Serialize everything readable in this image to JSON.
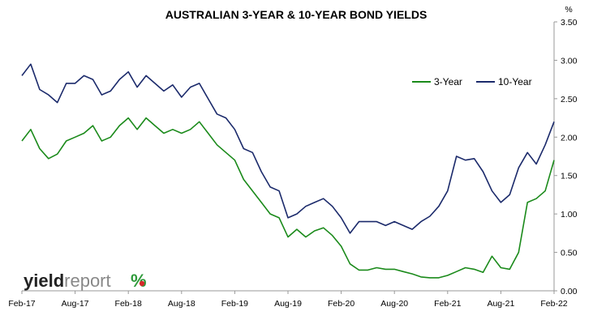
{
  "logo": {
    "part1": "yield",
    "part2": "report",
    "part3": "%"
  },
  "colors": {
    "three_year": "#1a8a1a",
    "ten_year": "#1b2a6b",
    "axis": "#999999",
    "logo_green": "#2e9a3a",
    "logo_red": "#d42a2a"
  },
  "chart_data": {
    "type": "line",
    "title": "AUSTRALIAN 3-YEAR & 10-YEAR BOND YIELDS",
    "ylabel": "%",
    "ylim": [
      0,
      3.5
    ],
    "y_ticks": [
      "0.00",
      "0.50",
      "1.00",
      "1.50",
      "2.00",
      "2.50",
      "3.00",
      "3.50"
    ],
    "x_ticks": [
      "Feb-17",
      "Aug-17",
      "Feb-18",
      "Aug-18",
      "Feb-19",
      "Aug-19",
      "Feb-20",
      "Aug-20",
      "Feb-21",
      "Aug-21",
      "Feb-22"
    ],
    "x_range": [
      "Feb-17",
      "Feb-22"
    ],
    "legend_position": "top-right",
    "series": [
      {
        "name": "3-Year",
        "color": "#1a8a1a",
        "points": [
          [
            "Feb-17",
            1.95
          ],
          [
            "Mar-17",
            2.1
          ],
          [
            "Apr-17",
            1.85
          ],
          [
            "May-17",
            1.72
          ],
          [
            "Jun-17",
            1.78
          ],
          [
            "Jul-17",
            1.95
          ],
          [
            "Aug-17",
            2.0
          ],
          [
            "Sep-17",
            2.05
          ],
          [
            "Oct-17",
            2.15
          ],
          [
            "Nov-17",
            1.95
          ],
          [
            "Dec-17",
            2.0
          ],
          [
            "Jan-18",
            2.15
          ],
          [
            "Feb-18",
            2.25
          ],
          [
            "Mar-18",
            2.1
          ],
          [
            "Apr-18",
            2.25
          ],
          [
            "May-18",
            2.15
          ],
          [
            "Jun-18",
            2.05
          ],
          [
            "Jul-18",
            2.1
          ],
          [
            "Aug-18",
            2.05
          ],
          [
            "Sep-18",
            2.1
          ],
          [
            "Oct-18",
            2.2
          ],
          [
            "Nov-18",
            2.05
          ],
          [
            "Dec-18",
            1.9
          ],
          [
            "Jan-19",
            1.8
          ],
          [
            "Feb-19",
            1.7
          ],
          [
            "Mar-19",
            1.45
          ],
          [
            "Apr-19",
            1.3
          ],
          [
            "May-19",
            1.15
          ],
          [
            "Jun-19",
            1.0
          ],
          [
            "Jul-19",
            0.95
          ],
          [
            "Aug-19",
            0.7
          ],
          [
            "Sep-19",
            0.8
          ],
          [
            "Oct-19",
            0.7
          ],
          [
            "Nov-19",
            0.78
          ],
          [
            "Dec-19",
            0.82
          ],
          [
            "Jan-20",
            0.72
          ],
          [
            "Feb-20",
            0.58
          ],
          [
            "Mar-20",
            0.35
          ],
          [
            "Apr-20",
            0.27
          ],
          [
            "May-20",
            0.27
          ],
          [
            "Jun-20",
            0.3
          ],
          [
            "Jul-20",
            0.28
          ],
          [
            "Aug-20",
            0.28
          ],
          [
            "Sep-20",
            0.25
          ],
          [
            "Oct-20",
            0.22
          ],
          [
            "Nov-20",
            0.18
          ],
          [
            "Dec-20",
            0.17
          ],
          [
            "Jan-21",
            0.17
          ],
          [
            "Feb-21",
            0.2
          ],
          [
            "Mar-21",
            0.25
          ],
          [
            "Apr-21",
            0.3
          ],
          [
            "May-21",
            0.28
          ],
          [
            "Jun-21",
            0.24
          ],
          [
            "Jul-21",
            0.45
          ],
          [
            "Aug-21",
            0.3
          ],
          [
            "Sep-21",
            0.28
          ],
          [
            "Oct-21",
            0.5
          ],
          [
            "Nov-21",
            1.15
          ],
          [
            "Dec-21",
            1.2
          ],
          [
            "Jan-22",
            1.3
          ],
          [
            "Feb-22",
            1.7
          ]
        ]
      },
      {
        "name": "10-Year",
        "color": "#1b2a6b",
        "points": [
          [
            "Feb-17",
            2.8
          ],
          [
            "Mar-17",
            2.95
          ],
          [
            "Apr-17",
            2.62
          ],
          [
            "May-17",
            2.55
          ],
          [
            "Jun-17",
            2.45
          ],
          [
            "Jul-17",
            2.7
          ],
          [
            "Aug-17",
            2.7
          ],
          [
            "Sep-17",
            2.8
          ],
          [
            "Oct-17",
            2.75
          ],
          [
            "Nov-17",
            2.55
          ],
          [
            "Dec-17",
            2.6
          ],
          [
            "Jan-18",
            2.75
          ],
          [
            "Feb-18",
            2.85
          ],
          [
            "Mar-18",
            2.65
          ],
          [
            "Apr-18",
            2.8
          ],
          [
            "May-18",
            2.7
          ],
          [
            "Jun-18",
            2.6
          ],
          [
            "Jul-18",
            2.68
          ],
          [
            "Aug-18",
            2.52
          ],
          [
            "Sep-18",
            2.65
          ],
          [
            "Oct-18",
            2.7
          ],
          [
            "Nov-18",
            2.5
          ],
          [
            "Dec-18",
            2.3
          ],
          [
            "Jan-19",
            2.25
          ],
          [
            "Feb-19",
            2.1
          ],
          [
            "Mar-19",
            1.85
          ],
          [
            "Apr-19",
            1.8
          ],
          [
            "May-19",
            1.55
          ],
          [
            "Jun-19",
            1.35
          ],
          [
            "Jul-19",
            1.3
          ],
          [
            "Aug-19",
            0.95
          ],
          [
            "Sep-19",
            1.0
          ],
          [
            "Oct-19",
            1.1
          ],
          [
            "Nov-19",
            1.15
          ],
          [
            "Dec-19",
            1.2
          ],
          [
            "Jan-20",
            1.1
          ],
          [
            "Feb-20",
            0.95
          ],
          [
            "Mar-20",
            0.75
          ],
          [
            "Apr-20",
            0.9
          ],
          [
            "May-20",
            0.9
          ],
          [
            "Jun-20",
            0.9
          ],
          [
            "Jul-20",
            0.85
          ],
          [
            "Aug-20",
            0.9
          ],
          [
            "Sep-20",
            0.85
          ],
          [
            "Oct-20",
            0.8
          ],
          [
            "Nov-20",
            0.9
          ],
          [
            "Dec-20",
            0.97
          ],
          [
            "Jan-21",
            1.1
          ],
          [
            "Feb-21",
            1.3
          ],
          [
            "Mar-21",
            1.75
          ],
          [
            "Apr-21",
            1.7
          ],
          [
            "May-21",
            1.72
          ],
          [
            "Jun-21",
            1.55
          ],
          [
            "Jul-21",
            1.3
          ],
          [
            "Aug-21",
            1.15
          ],
          [
            "Sep-21",
            1.25
          ],
          [
            "Oct-21",
            1.6
          ],
          [
            "Nov-21",
            1.8
          ],
          [
            "Dec-21",
            1.65
          ],
          [
            "Jan-22",
            1.9
          ],
          [
            "Feb-22",
            2.2
          ]
        ]
      }
    ]
  }
}
